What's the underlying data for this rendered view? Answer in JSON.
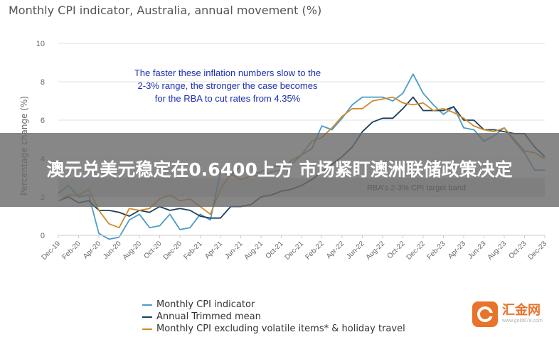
{
  "chart_data": {
    "type": "line",
    "title": "Monthly CPI indicator, Australia, annual movement (%)",
    "ylabel": "Percentage change (%)",
    "xlabel": "",
    "ylim": [
      0,
      10
    ],
    "yticks": [
      0,
      2,
      4,
      6,
      8,
      10
    ],
    "x": [
      "Dec-19",
      "Jan-20",
      "Feb-20",
      "Mar-20",
      "Apr-20",
      "May-20",
      "Jun-20",
      "Jul-20",
      "Aug-20",
      "Sep-20",
      "Oct-20",
      "Nov-20",
      "Dec-20",
      "Jan-21",
      "Feb-21",
      "Mar-21",
      "Apr-21",
      "May-21",
      "Jun-21",
      "Jul-21",
      "Aug-21",
      "Sep-21",
      "Oct-21",
      "Nov-21",
      "Dec-21",
      "Jan-22",
      "Feb-22",
      "Mar-22",
      "Apr-22",
      "May-22",
      "Jun-22",
      "Jul-22",
      "Aug-22",
      "Sep-22",
      "Oct-22",
      "Nov-22",
      "Dec-22",
      "Jan-23",
      "Feb-23",
      "Mar-23",
      "Apr-23",
      "May-23",
      "Jun-23",
      "Jul-23",
      "Aug-23",
      "Sep-23",
      "Oct-23",
      "Nov-23",
      "Dec-23"
    ],
    "xtick_labels": [
      "Dec-19",
      "Feb-20",
      "Apr-20",
      "Jun-20",
      "Aug-20",
      "Oct-20",
      "Dec-20",
      "Feb-21",
      "Apr-21",
      "Jun-21",
      "Aug-21",
      "Oct-21",
      "Dec-21",
      "Feb-22",
      "Apr-22",
      "Jun-22",
      "Aug-22",
      "Oct-22",
      "Dec-22",
      "Feb-23",
      "Apr-23",
      "Jun-23",
      "Aug-23",
      "Oct-23",
      "Dec-23"
    ],
    "series": [
      {
        "name": "Monthly CPI indicator",
        "color": "#4a9cc8",
        "values": [
          2.2,
          2.6,
          2.0,
          2.1,
          0.1,
          -0.2,
          -0.1,
          0.8,
          1.1,
          0.4,
          0.5,
          1.1,
          0.3,
          0.4,
          1.1,
          0.8,
          3.3,
          3.1,
          3.6,
          3.2,
          3.3,
          3.6,
          3.6,
          3.7,
          4.2,
          4.5,
          5.7,
          5.5,
          6.1,
          6.8,
          7.2,
          7.2,
          7.2,
          7.0,
          7.4,
          8.4,
          7.4,
          6.8,
          6.3,
          6.7,
          5.6,
          5.5,
          4.9,
          5.2,
          5.6,
          4.9,
          4.3,
          3.4,
          3.4
        ]
      },
      {
        "name": "Annual Trimmed mean",
        "color": "#1b3f5e",
        "values": [
          1.8,
          2.0,
          1.7,
          1.8,
          1.3,
          1.3,
          1.2,
          1.0,
          1.3,
          1.2,
          1.5,
          1.3,
          1.4,
          1.3,
          1.0,
          0.9,
          0.9,
          1.5,
          1.5,
          1.6,
          2.0,
          2.1,
          2.3,
          2.4,
          2.6,
          2.9,
          3.3,
          3.7,
          4.1,
          4.6,
          5.4,
          5.9,
          6.1,
          6.1,
          6.6,
          7.2,
          6.5,
          6.5,
          6.5,
          6.7,
          6.0,
          6.0,
          5.5,
          5.5,
          5.4,
          5.3,
          5.3,
          4.6,
          4.1
        ]
      },
      {
        "name": "Monthly CPI excluding volatile items* & holiday travel",
        "color": "#d08b2a",
        "values": [
          1.8,
          2.1,
          2.1,
          2.4,
          1.3,
          0.6,
          0.4,
          1.4,
          1.3,
          1.4,
          1.9,
          2.1,
          1.8,
          1.9,
          1.5,
          1.1,
          2.4,
          3.2,
          2.9,
          3.1,
          3.1,
          3.3,
          3.4,
          3.9,
          4.2,
          4.9,
          5.1,
          5.6,
          6.2,
          6.6,
          6.6,
          7.0,
          7.1,
          7.2,
          6.9,
          6.8,
          6.9,
          6.5,
          6.6,
          6.4,
          6.1,
          5.7,
          5.5,
          5.4,
          5.6,
          5.0,
          4.4,
          4.3,
          4.0
        ]
      }
    ],
    "band": {
      "from": 2,
      "to": 3,
      "label": "RBA's 2-3% CPI target band",
      "color": "#d6d6d6"
    },
    "annotation": [
      "The faster these inflation numbers slow to the",
      "2-3% range, the stronger the case becomes",
      "for the RBA to cut rates from 4.35%"
    ],
    "grid": true,
    "legend_placement": "bottom"
  },
  "banner": {
    "text": "澳元兑美元稳定在0.6400上方 市场紧盯澳洲联储政策决定"
  },
  "watermark": {
    "name": "汇金网",
    "url": "www.gold678.com"
  }
}
